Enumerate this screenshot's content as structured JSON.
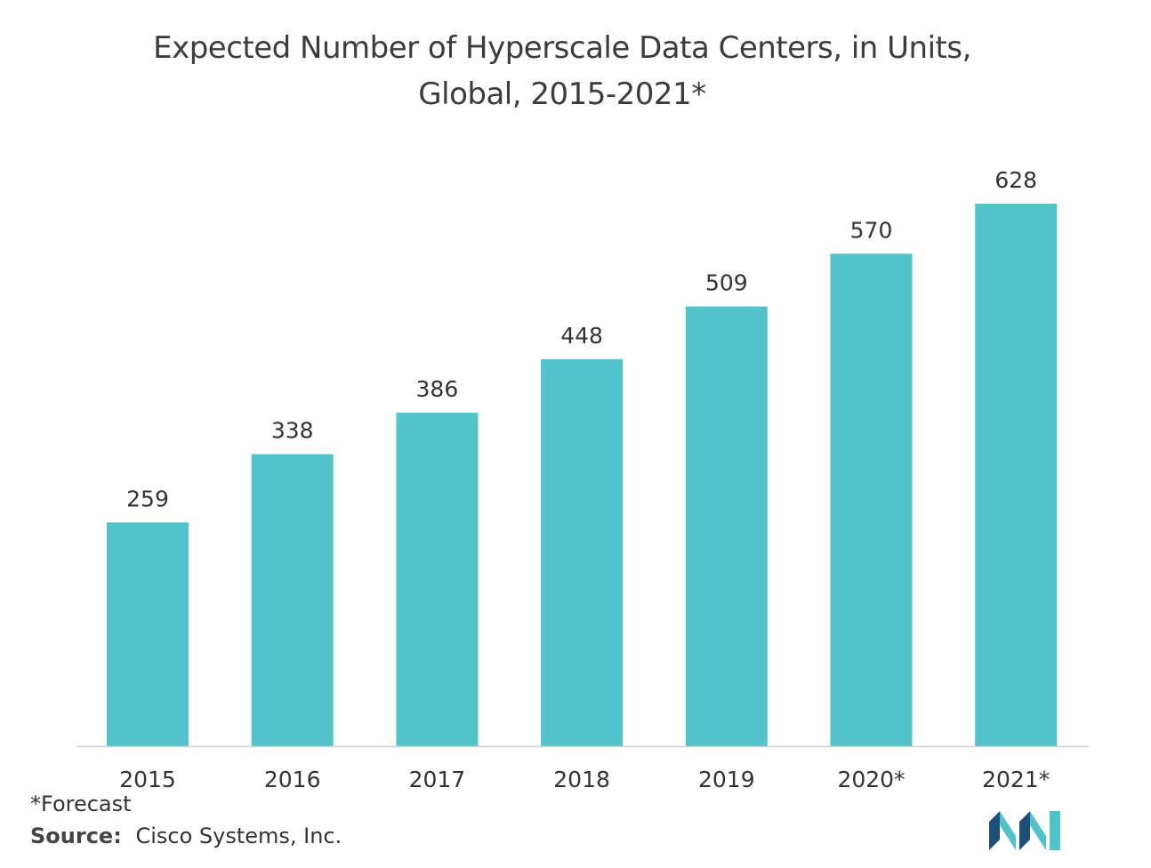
{
  "title": {
    "line1": "Expected Number of Hyperscale Data Centers, in Units,",
    "line2": "Global, 2015-2021*"
  },
  "footnote": "*Forecast",
  "source": {
    "label": "Source:",
    "text": "Cisco Systems, Inc."
  },
  "colors": {
    "bar": "#52c3c8",
    "axis": "#d0d0d0",
    "label": "#333333",
    "logo_dark": "#1f4e79",
    "logo_light": "#4fc3c8"
  },
  "chart_data": {
    "type": "bar",
    "title": "Expected Number of Hyperscale Data Centers, in Units, Global, 2015-2021*",
    "categories": [
      "2015",
      "2016",
      "2017",
      "2018",
      "2019",
      "2020*",
      "2021*"
    ],
    "values": [
      259,
      338,
      386,
      448,
      509,
      570,
      628
    ],
    "xlabel": "",
    "ylabel": "",
    "ylim": [
      0,
      700
    ],
    "grid": false,
    "legend": "none",
    "data_labels": true
  }
}
